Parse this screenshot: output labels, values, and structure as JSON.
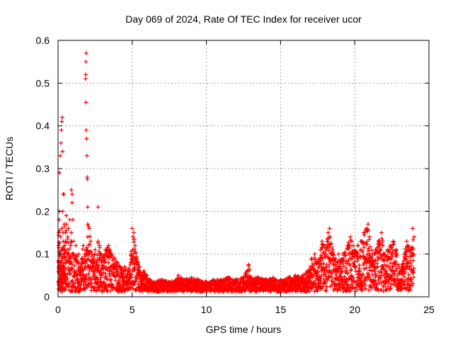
{
  "chart_data": {
    "type": "scatter",
    "title": "Day 069 of 2024, Rate Of TEC Index for receiver ucor",
    "xlabel": "GPS time / hours",
    "ylabel": "ROTI / TECUs",
    "xlim": [
      0,
      25
    ],
    "ylim": [
      0,
      0.6
    ],
    "xticks": [
      0,
      5,
      10,
      15,
      20,
      25
    ],
    "yticks": [
      0,
      0.1,
      0.2,
      0.3,
      0.4,
      0.5,
      0.6
    ],
    "xtick_labels": [
      "0",
      "5",
      "10",
      "15",
      "20",
      "25"
    ],
    "ytick_labels": [
      "0",
      "0.1",
      "0.2",
      "0.3",
      "0.4",
      "0.5",
      "0.6"
    ],
    "grid": true,
    "marker": "+",
    "marker_color": "#ff0000",
    "series": [
      {
        "name": "ROTI",
        "points": [
          [
            0.05,
            0.06
          ],
          [
            0.05,
            0.12
          ],
          [
            0.05,
            0.15
          ],
          [
            0.08,
            0.18
          ],
          [
            0.1,
            0.2
          ],
          [
            0.12,
            0.1
          ],
          [
            0.15,
            0.07
          ],
          [
            0.18,
            0.14
          ],
          [
            0.2,
            0.08
          ],
          [
            0.22,
            0.05
          ],
          [
            0.25,
            0.16
          ],
          [
            0.28,
            0.11
          ],
          [
            0.3,
            0.09
          ],
          [
            0.32,
            0.2
          ],
          [
            0.35,
            0.13
          ],
          [
            0.38,
            0.06
          ],
          [
            0.4,
            0.1
          ],
          [
            0.42,
            0.17
          ],
          [
            0.45,
            0.12
          ],
          [
            0.48,
            0.08
          ],
          [
            0.5,
            0.15
          ],
          [
            0.55,
            0.19
          ],
          [
            0.6,
            0.11
          ],
          [
            0.65,
            0.14
          ],
          [
            0.7,
            0.16
          ],
          [
            0.75,
            0.09
          ],
          [
            0.8,
            0.18
          ],
          [
            0.85,
            0.12
          ],
          [
            0.9,
            0.15
          ],
          [
            0.95,
            0.1
          ],
          [
            1.0,
            0.18
          ],
          [
            1.05,
            0.13
          ],
          [
            1.1,
            0.09
          ],
          [
            1.2,
            0.12
          ],
          [
            1.3,
            0.08
          ],
          [
            1.4,
            0.1
          ],
          [
            1.5,
            0.07
          ],
          [
            1.6,
            0.09
          ],
          [
            1.7,
            0.12
          ],
          [
            1.8,
            0.1
          ],
          [
            1.9,
            0.11
          ],
          [
            2.0,
            0.14
          ],
          [
            2.1,
            0.16
          ],
          [
            2.2,
            0.13
          ],
          [
            2.3,
            0.1
          ],
          [
            2.4,
            0.09
          ],
          [
            2.5,
            0.11
          ],
          [
            2.6,
            0.08
          ],
          [
            2.7,
            0.13
          ],
          [
            2.8,
            0.12
          ],
          [
            2.9,
            0.1
          ],
          [
            3.0,
            0.09
          ],
          [
            3.2,
            0.11
          ],
          [
            3.4,
            0.12
          ],
          [
            3.5,
            0.11
          ],
          [
            3.6,
            0.1
          ],
          [
            3.8,
            0.09
          ],
          [
            4.0,
            0.08
          ],
          [
            4.2,
            0.07
          ],
          [
            4.4,
            0.06
          ],
          [
            4.5,
            0.07
          ],
          [
            4.7,
            0.06
          ],
          [
            4.9,
            0.08
          ],
          [
            5.0,
            0.16
          ],
          [
            5.05,
            0.14
          ],
          [
            5.1,
            0.15
          ],
          [
            5.2,
            0.12
          ],
          [
            5.3,
            0.09
          ],
          [
            5.4,
            0.08
          ],
          [
            5.5,
            0.07
          ],
          [
            5.6,
            0.05
          ],
          [
            5.8,
            0.06
          ],
          [
            6.0,
            0.05
          ],
          [
            6.2,
            0.04
          ],
          [
            6.5,
            0.035
          ],
          [
            7.0,
            0.04
          ],
          [
            7.5,
            0.035
          ],
          [
            8.0,
            0.04
          ],
          [
            8.1,
            0.05
          ],
          [
            8.5,
            0.04
          ],
          [
            9.0,
            0.045
          ],
          [
            9.5,
            0.04
          ],
          [
            10.0,
            0.035
          ],
          [
            10.5,
            0.04
          ],
          [
            11.0,
            0.04
          ],
          [
            11.5,
            0.045
          ],
          [
            12.0,
            0.04
          ],
          [
            12.5,
            0.045
          ],
          [
            12.85,
            0.075
          ],
          [
            12.9,
            0.065
          ],
          [
            13.0,
            0.045
          ],
          [
            13.5,
            0.045
          ],
          [
            14.0,
            0.04
          ],
          [
            14.5,
            0.045
          ],
          [
            15.0,
            0.04
          ],
          [
            15.5,
            0.045
          ],
          [
            16.0,
            0.05
          ],
          [
            16.5,
            0.05
          ],
          [
            16.8,
            0.06
          ],
          [
            17.0,
            0.07
          ],
          [
            17.1,
            0.09
          ],
          [
            17.3,
            0.1
          ],
          [
            17.5,
            0.08
          ],
          [
            17.7,
            0.11
          ],
          [
            17.8,
            0.13
          ],
          [
            18.0,
            0.12
          ],
          [
            18.2,
            0.15
          ],
          [
            18.3,
            0.16
          ],
          [
            18.5,
            0.11
          ],
          [
            18.7,
            0.09
          ],
          [
            18.9,
            0.1
          ],
          [
            19.0,
            0.08
          ],
          [
            19.2,
            0.1
          ],
          [
            19.5,
            0.12
          ],
          [
            19.7,
            0.14
          ],
          [
            19.8,
            0.13
          ],
          [
            20.0,
            0.11
          ],
          [
            20.2,
            0.12
          ],
          [
            20.4,
            0.13
          ],
          [
            20.6,
            0.15
          ],
          [
            20.8,
            0.16
          ],
          [
            20.9,
            0.17
          ],
          [
            21.0,
            0.14
          ],
          [
            21.2,
            0.1
          ],
          [
            21.4,
            0.11
          ],
          [
            21.6,
            0.13
          ],
          [
            21.8,
            0.15
          ],
          [
            22.0,
            0.1
          ],
          [
            22.2,
            0.11
          ],
          [
            22.4,
            0.12
          ],
          [
            22.6,
            0.13
          ],
          [
            22.8,
            0.11
          ],
          [
            23.0,
            0.07
          ],
          [
            23.1,
            0.06
          ],
          [
            23.5,
            0.13
          ],
          [
            23.6,
            0.12
          ],
          [
            23.8,
            0.11
          ],
          [
            23.9,
            0.16
          ],
          [
            24.0,
            0.14
          ]
        ],
        "outliers": [
          [
            0.1,
            0.29
          ],
          [
            0.15,
            0.33
          ],
          [
            0.2,
            0.36
          ],
          [
            0.22,
            0.39
          ],
          [
            0.25,
            0.41
          ],
          [
            0.28,
            0.42
          ],
          [
            0.3,
            0.34
          ],
          [
            0.35,
            0.24
          ],
          [
            0.4,
            0.24
          ],
          [
            0.9,
            0.25
          ],
          [
            0.95,
            0.24
          ],
          [
            0.95,
            0.22
          ],
          [
            1.9,
            0.57
          ],
          [
            1.88,
            0.55
          ],
          [
            1.87,
            0.52
          ],
          [
            1.86,
            0.51
          ],
          [
            1.88,
            0.455
          ],
          [
            1.9,
            0.39
          ],
          [
            1.92,
            0.37
          ],
          [
            1.95,
            0.33
          ],
          [
            1.96,
            0.28
          ],
          [
            1.98,
            0.275
          ],
          [
            2.0,
            0.21
          ],
          [
            2.7,
            0.21
          ],
          [
            2.0,
            0.17
          ],
          [
            2.05,
            0.165
          ]
        ]
      }
    ]
  }
}
